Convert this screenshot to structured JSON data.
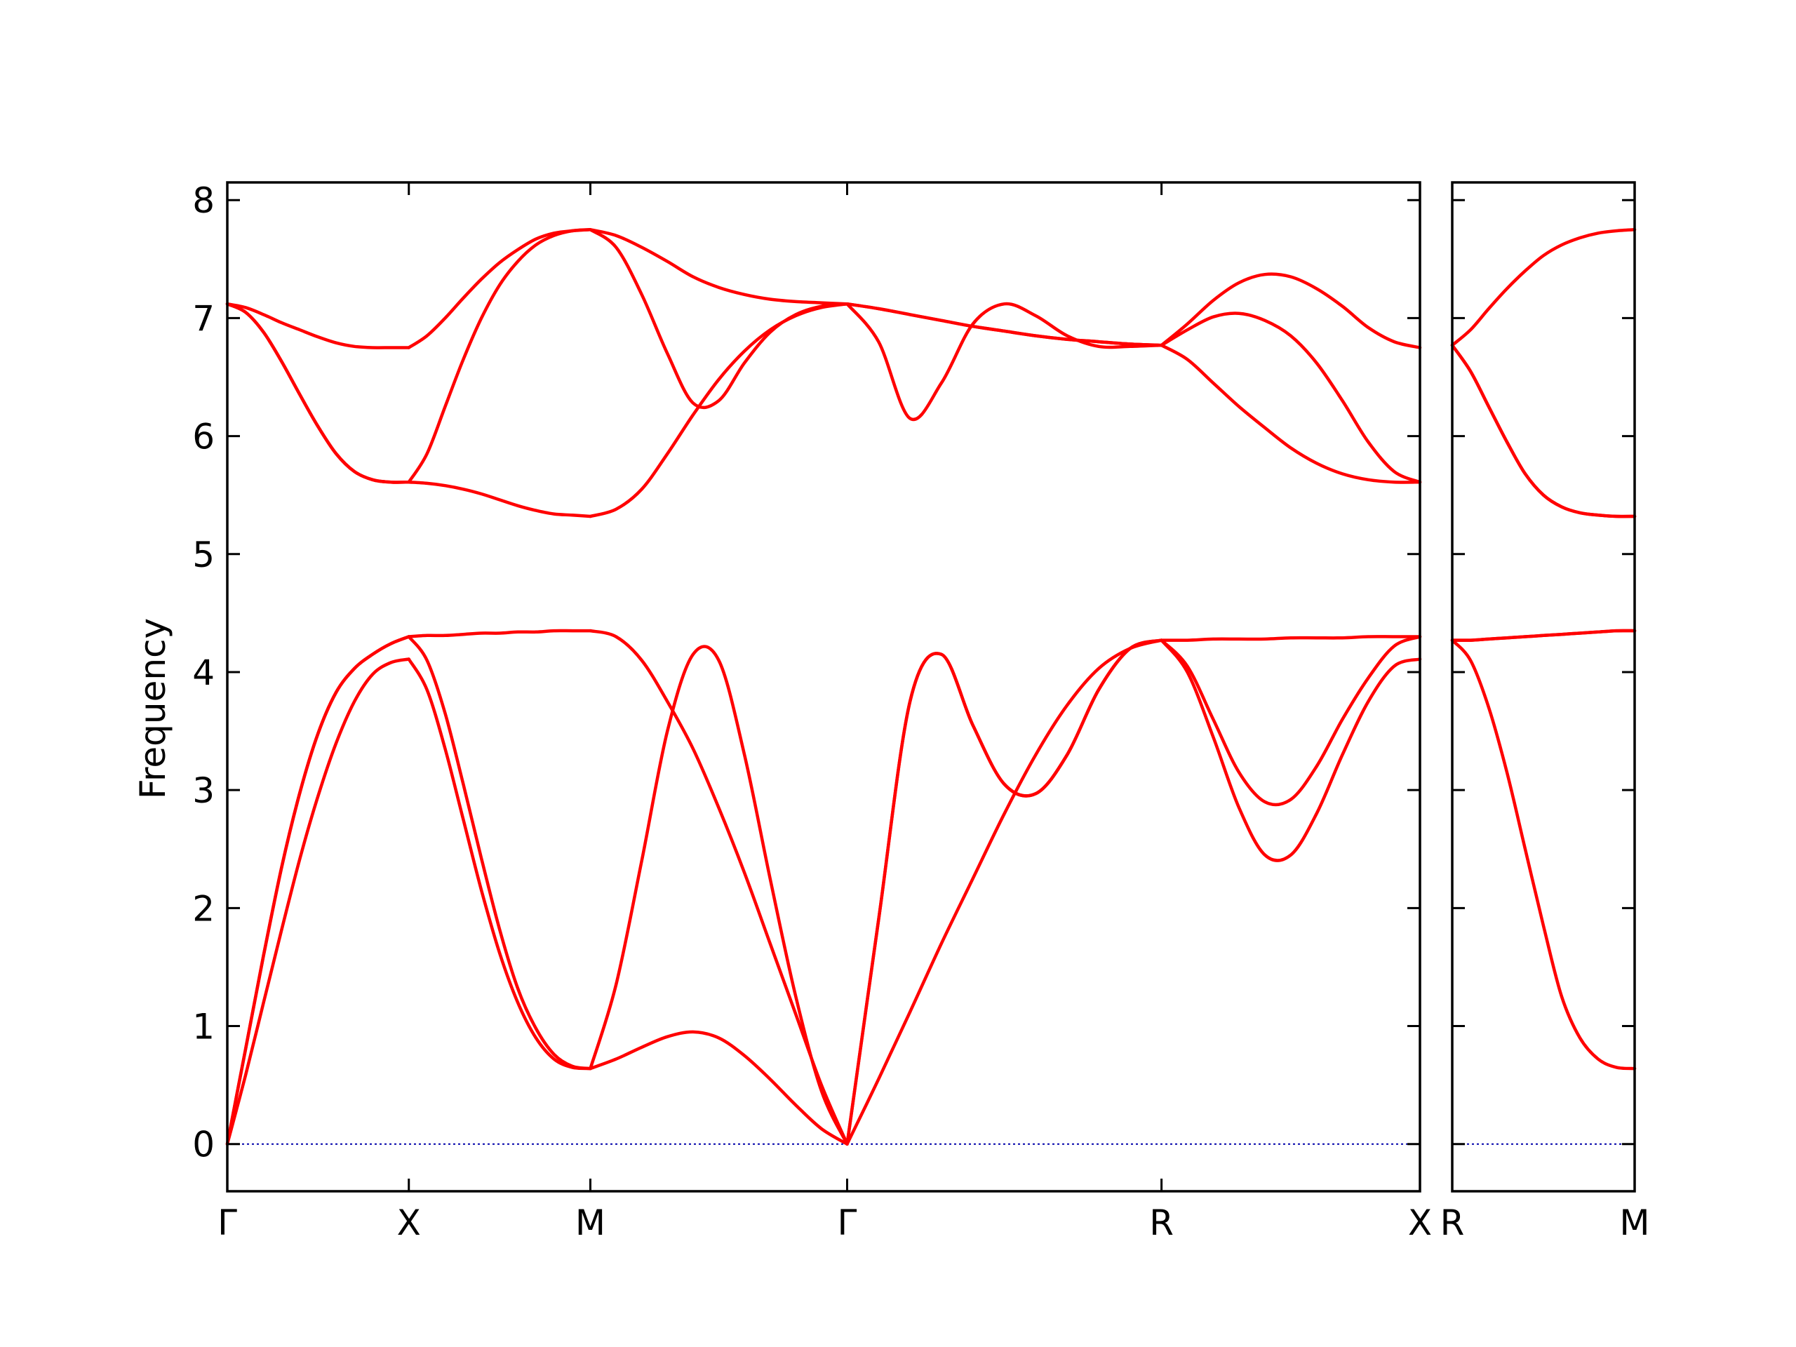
{
  "chart_data": {
    "type": "line",
    "title": "",
    "xlabel": "",
    "ylabel": "Frequency",
    "ylim": [
      -0.4,
      8.15
    ],
    "yticks": [
      0,
      1,
      2,
      3,
      4,
      5,
      6,
      7,
      8
    ],
    "grid": false,
    "legend": "none",
    "colors": {
      "bands": "#ff0000",
      "zero_line": "#0000aa",
      "frame": "#000000"
    },
    "panels": [
      {
        "xticks": [
          "Γ",
          "X",
          "M",
          "Γ",
          "R",
          "X"
        ],
        "segments": [
          {
            "from": "Γ",
            "to": "X",
            "x": [
              0,
              0.1,
              0.2,
              0.3,
              0.4,
              0.5,
              0.6,
              0.7,
              0.8,
              0.9,
              1
            ],
            "bands": [
              [
                0,
                0.58,
                1.2,
                1.82,
                2.42,
                2.95,
                3.4,
                3.75,
                3.98,
                4.08,
                4.11
              ],
              [
                0,
                0.8,
                1.6,
                2.35,
                2.98,
                3.48,
                3.83,
                4.03,
                4.15,
                4.24,
                4.3
              ],
              [
                0,
                0.8,
                1.6,
                2.35,
                2.98,
                3.48,
                3.83,
                4.03,
                4.15,
                4.24,
                4.3
              ],
              [
                7.12,
                7.05,
                6.88,
                6.63,
                6.35,
                6.08,
                5.85,
                5.7,
                5.63,
                5.61,
                5.61
              ],
              [
                7.12,
                7.05,
                6.88,
                6.63,
                6.35,
                6.08,
                5.85,
                5.7,
                5.63,
                5.61,
                5.61
              ],
              [
                7.12,
                7.09,
                7.03,
                6.96,
                6.9,
                6.84,
                6.79,
                6.76,
                6.75,
                6.75,
                6.75
              ]
            ]
          },
          {
            "from": "X",
            "to": "M",
            "x": [
              0,
              0.1,
              0.2,
              0.3,
              0.4,
              0.5,
              0.6,
              0.7,
              0.8,
              0.9,
              1
            ],
            "bands": [
              [
                4.11,
                3.85,
                3.35,
                2.75,
                2.15,
                1.62,
                1.2,
                0.9,
                0.72,
                0.65,
                0.64
              ],
              [
                4.3,
                4.1,
                3.65,
                3.05,
                2.42,
                1.82,
                1.32,
                0.98,
                0.76,
                0.66,
                0.64
              ],
              [
                4.3,
                4.31,
                4.31,
                4.32,
                4.33,
                4.33,
                4.34,
                4.34,
                4.35,
                4.35,
                4.35
              ],
              [
                5.61,
                5.6,
                5.58,
                5.55,
                5.51,
                5.46,
                5.41,
                5.37,
                5.34,
                5.33,
                5.32
              ],
              [
                5.61,
                5.85,
                6.25,
                6.65,
                7.0,
                7.28,
                7.48,
                7.62,
                7.7,
                7.74,
                7.75
              ],
              [
                6.75,
                6.85,
                7.0,
                7.17,
                7.33,
                7.47,
                7.58,
                7.67,
                7.72,
                7.74,
                7.75
              ]
            ]
          },
          {
            "from": "M",
            "to": "Γ",
            "x": [
              0,
              0.1,
              0.2,
              0.3,
              0.4,
              0.5,
              0.6,
              0.7,
              0.8,
              0.9,
              1
            ],
            "bands": [
              [
                0.64,
                0.72,
                0.82,
                0.91,
                0.95,
                0.9,
                0.75,
                0.55,
                0.33,
                0.13,
                0
              ],
              [
                0.64,
                1.35,
                2.4,
                3.5,
                4.15,
                4.1,
                3.3,
                2.25,
                1.25,
                0.45,
                0
              ],
              [
                4.35,
                4.3,
                4.1,
                3.75,
                3.35,
                2.85,
                2.3,
                1.7,
                1.1,
                0.5,
                0
              ],
              [
                5.32,
                5.38,
                5.55,
                5.85,
                6.18,
                6.48,
                6.72,
                6.9,
                7.02,
                7.09,
                7.12
              ],
              [
                7.75,
                7.6,
                7.2,
                6.7,
                6.28,
                6.3,
                6.62,
                6.88,
                7.03,
                7.1,
                7.12
              ],
              [
                7.75,
                7.7,
                7.6,
                7.48,
                7.35,
                7.26,
                7.2,
                7.16,
                7.14,
                7.13,
                7.12
              ]
            ]
          },
          {
            "from": "Γ",
            "to": "R",
            "x": [
              0,
              0.1,
              0.2,
              0.3,
              0.4,
              0.5,
              0.6,
              0.7,
              0.8,
              0.9,
              1
            ],
            "bands": [
              [
                0,
                0.55,
                1.12,
                1.7,
                2.25,
                2.8,
                3.3,
                3.72,
                4.03,
                4.2,
                4.27
              ],
              [
                0,
                1.9,
                3.75,
                4.15,
                3.55,
                3.05,
                2.97,
                3.3,
                3.85,
                4.2,
                4.27
              ],
              [
                0,
                1.9,
                3.75,
                4.15,
                3.55,
                3.05,
                2.97,
                3.3,
                3.85,
                4.2,
                4.27
              ],
              [
                7.12,
                6.8,
                6.15,
                6.45,
                6.95,
                7.12,
                7.02,
                6.85,
                6.76,
                6.76,
                6.77
              ],
              [
                7.12,
                7.08,
                7.03,
                6.98,
                6.93,
                6.89,
                6.85,
                6.82,
                6.8,
                6.78,
                6.77
              ],
              [
                7.12,
                7.08,
                7.03,
                6.98,
                6.93,
                6.89,
                6.85,
                6.82,
                6.8,
                6.78,
                6.77
              ]
            ]
          },
          {
            "from": "R",
            "to": "X",
            "x": [
              0,
              0.1,
              0.2,
              0.3,
              0.4,
              0.5,
              0.6,
              0.7,
              0.8,
              0.9,
              1
            ],
            "bands": [
              [
                4.27,
                4.0,
                3.45,
                2.85,
                2.45,
                2.45,
                2.8,
                3.3,
                3.75,
                4.05,
                4.11
              ],
              [
                4.27,
                4.05,
                3.6,
                3.15,
                2.9,
                2.92,
                3.2,
                3.6,
                3.95,
                4.22,
                4.3
              ],
              [
                4.27,
                4.27,
                4.28,
                4.28,
                4.28,
                4.29,
                4.29,
                4.29,
                4.3,
                4.3,
                4.3
              ],
              [
                6.77,
                6.65,
                6.45,
                6.25,
                6.07,
                5.9,
                5.77,
                5.68,
                5.63,
                5.61,
                5.61
              ],
              [
                6.77,
                6.9,
                7.01,
                7.04,
                6.98,
                6.85,
                6.62,
                6.3,
                5.95,
                5.7,
                5.61
              ],
              [
                6.77,
                6.95,
                7.15,
                7.3,
                7.37,
                7.35,
                7.25,
                7.1,
                6.92,
                6.8,
                6.75
              ]
            ]
          }
        ]
      },
      {
        "xticks": [
          "R",
          "M"
        ],
        "segments": [
          {
            "from": "R",
            "to": "M",
            "x": [
              0,
              0.1,
              0.2,
              0.3,
              0.4,
              0.5,
              0.6,
              0.7,
              0.8,
              0.9,
              1
            ],
            "bands": [
              [
                4.27,
                4.1,
                3.7,
                3.15,
                2.5,
                1.85,
                1.25,
                0.9,
                0.72,
                0.65,
                0.64
              ],
              [
                4.27,
                4.27,
                4.28,
                4.29,
                4.3,
                4.31,
                4.32,
                4.33,
                4.34,
                4.35,
                4.35
              ],
              [
                4.27,
                4.27,
                4.28,
                4.29,
                4.3,
                4.31,
                4.32,
                4.33,
                4.34,
                4.35,
                4.35
              ],
              [
                6.77,
                6.55,
                6.25,
                5.95,
                5.68,
                5.5,
                5.4,
                5.35,
                5.33,
                5.32,
                5.32
              ],
              [
                6.77,
                6.55,
                6.25,
                5.95,
                5.68,
                5.5,
                5.4,
                5.35,
                5.33,
                5.32,
                5.32
              ],
              [
                6.77,
                6.9,
                7.08,
                7.25,
                7.4,
                7.53,
                7.62,
                7.68,
                7.72,
                7.74,
                7.75
              ]
            ]
          }
        ]
      }
    ]
  }
}
